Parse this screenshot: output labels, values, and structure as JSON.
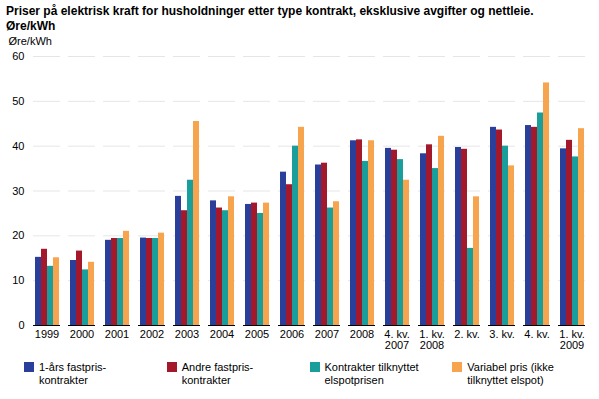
{
  "chart_data": {
    "type": "bar",
    "title": "Priser på elektrisk kraft for husholdninger etter type kontrakt, eksklusive avgifter og nettleie.\nØre/kWh",
    "y_label": "Øre/kWh",
    "categories": [
      "1999",
      "2000",
      "2001",
      "2002",
      "2003",
      "2004",
      "2005",
      "2006",
      "2007",
      "2008",
      "4. kv.\n2007",
      "1. kv.\n2008",
      "2. kv.",
      "3. kv.",
      "4. kv.",
      "1. kv.\n2009"
    ],
    "series": [
      {
        "name": "1-års fastpris-\nkontrakter",
        "color": "#2a3f9a",
        "values": [
          15.2,
          14.5,
          19.0,
          19.5,
          28.8,
          27.8,
          27.0,
          34.2,
          35.8,
          41.2,
          39.5,
          38.3,
          39.7,
          44.2,
          44.6,
          39.4
        ]
      },
      {
        "name": "Andre fastpris-\nkontrakter",
        "color": "#a3182a",
        "values": [
          17.0,
          16.6,
          19.4,
          19.4,
          25.6,
          26.2,
          27.3,
          31.4,
          36.2,
          41.4,
          39.1,
          40.3,
          39.3,
          43.6,
          44.2,
          41.3
        ]
      },
      {
        "name": "Kontrakter tilknyttet\nelspotprisen",
        "color": "#1a9e9c",
        "values": [
          13.2,
          12.4,
          19.4,
          19.4,
          32.4,
          25.6,
          25.0,
          40.0,
          26.2,
          36.6,
          37.0,
          35.0,
          17.2,
          40.0,
          47.4,
          37.6
        ]
      },
      {
        "name": "Variabel pris (ikke\ntilknyttet elspot)",
        "color": "#f7a44e",
        "values": [
          15.1,
          14.1,
          21.0,
          20.6,
          45.5,
          28.7,
          27.3,
          44.2,
          27.6,
          41.2,
          32.4,
          42.2,
          28.7,
          35.6,
          54.1,
          43.9
        ]
      }
    ],
    "ylim": [
      0,
      60
    ],
    "yticks": [
      0,
      10,
      20,
      30,
      40,
      50,
      60
    ],
    "grid": true,
    "legend": "bottom"
  }
}
